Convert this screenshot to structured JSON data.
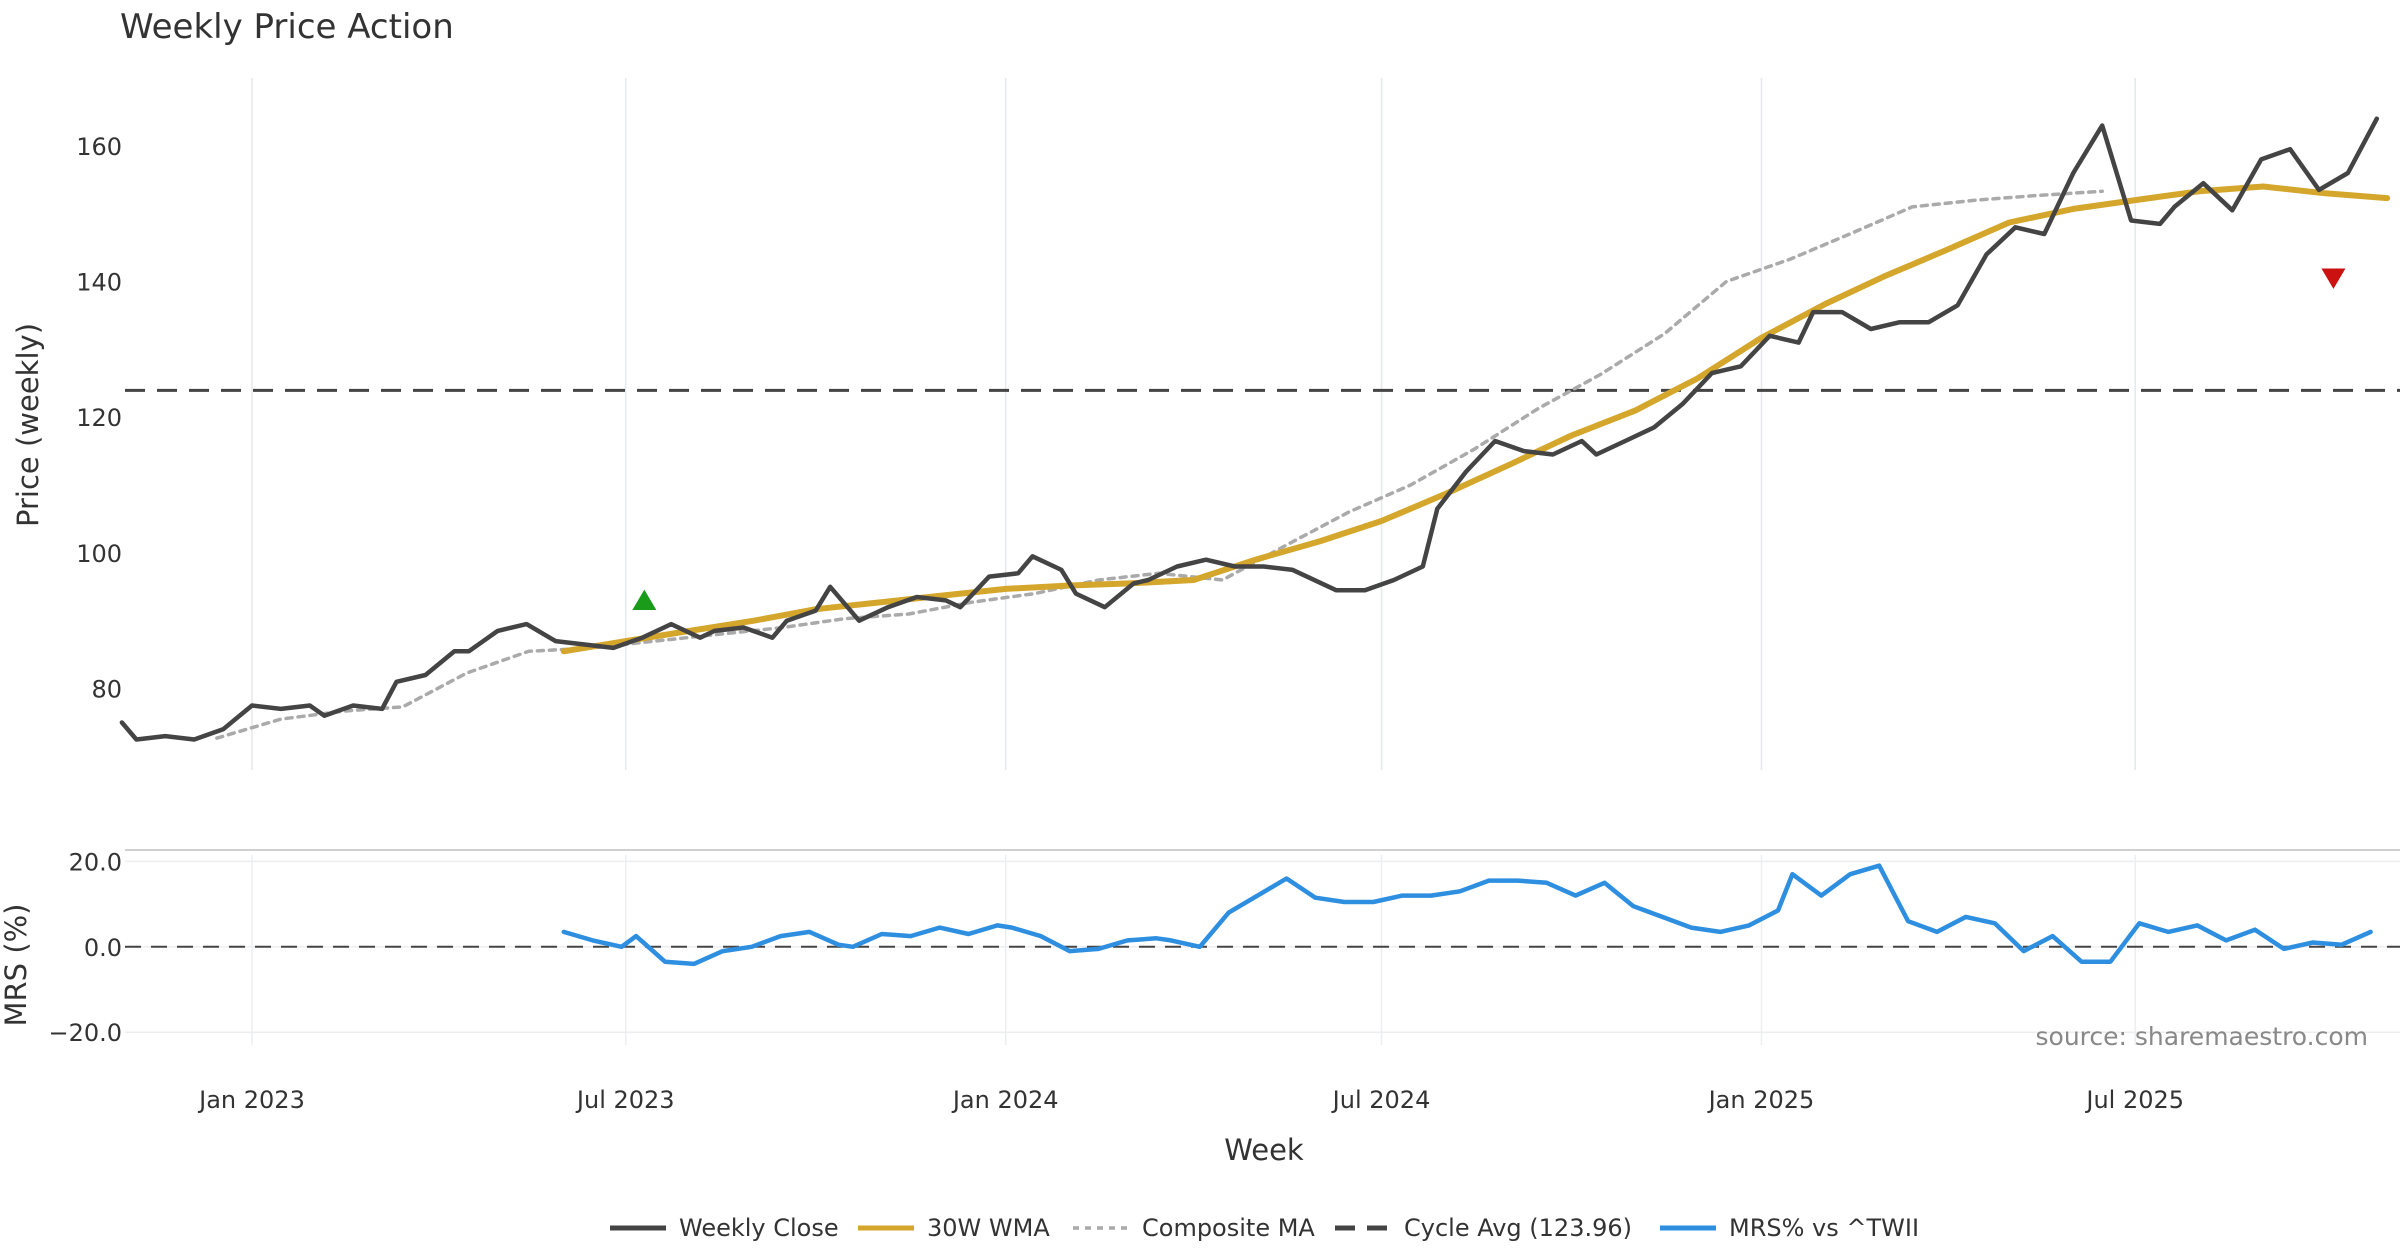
{
  "chart_data": [
    {
      "type": "line",
      "title": "Weekly Price Action",
      "xlabel": "Week",
      "ylabel": "Price (weekly)",
      "ylim": [
        68,
        170
      ],
      "yticks": [
        80,
        100,
        120,
        140,
        160
      ],
      "xticks": [
        {
          "date": "2023-01-01",
          "label": "Jan 2023"
        },
        {
          "date": "2023-07-01",
          "label": "Jul 2023"
        },
        {
          "date": "2024-01-01",
          "label": "Jan 2024"
        },
        {
          "date": "2024-07-01",
          "label": "Jul 2024"
        },
        {
          "date": "2025-01-01",
          "label": "Jan 2025"
        },
        {
          "date": "2025-07-01",
          "label": "Jul 2025"
        }
      ],
      "grid": true,
      "cycle_avg": 123.96,
      "series": [
        {
          "name": "Weekly Close",
          "color": "#444444",
          "style": "solid",
          "points": [
            [
              "2022-10-30",
              75.0
            ],
            [
              "2022-11-06",
              72.5
            ],
            [
              "2022-11-20",
              73.0
            ],
            [
              "2022-12-04",
              72.5
            ],
            [
              "2022-12-18",
              74.0
            ],
            [
              "2023-01-01",
              77.5
            ],
            [
              "2023-01-15",
              77.0
            ],
            [
              "2023-01-29",
              77.5
            ],
            [
              "2023-02-05",
              76.0
            ],
            [
              "2023-02-19",
              77.5
            ],
            [
              "2023-03-05",
              77.0
            ],
            [
              "2023-03-12",
              81.0
            ],
            [
              "2023-03-26",
              82.0
            ],
            [
              "2023-04-09",
              85.5
            ],
            [
              "2023-04-16",
              85.5
            ],
            [
              "2023-04-30",
              88.5
            ],
            [
              "2023-05-14",
              89.5
            ],
            [
              "2023-05-28",
              87.0
            ],
            [
              "2023-06-11",
              86.5
            ],
            [
              "2023-06-25",
              86.0
            ],
            [
              "2023-07-09",
              87.5
            ],
            [
              "2023-07-23",
              89.5
            ],
            [
              "2023-08-06",
              87.5
            ],
            [
              "2023-08-13",
              88.5
            ],
            [
              "2023-08-27",
              89.0
            ],
            [
              "2023-09-10",
              87.5
            ],
            [
              "2023-09-17",
              90.0
            ],
            [
              "2023-10-01",
              91.5
            ],
            [
              "2023-10-08",
              95.0
            ],
            [
              "2023-10-22",
              90.0
            ],
            [
              "2023-11-05",
              92.0
            ],
            [
              "2023-11-19",
              93.5
            ],
            [
              "2023-12-03",
              93.0
            ],
            [
              "2023-12-10",
              92.0
            ],
            [
              "2023-12-24",
              96.5
            ],
            [
              "2024-01-07",
              97.0
            ],
            [
              "2024-01-14",
              99.5
            ],
            [
              "2024-01-28",
              97.5
            ],
            [
              "2024-02-04",
              94.0
            ],
            [
              "2024-02-18",
              92.0
            ],
            [
              "2024-03-03",
              95.5
            ],
            [
              "2024-03-10",
              96.0
            ],
            [
              "2024-03-24",
              98.0
            ],
            [
              "2024-04-07",
              99.0
            ],
            [
              "2024-04-21",
              98.0
            ],
            [
              "2024-05-05",
              98.0
            ],
            [
              "2024-05-19",
              97.5
            ],
            [
              "2024-06-02",
              95.5
            ],
            [
              "2024-06-09",
              94.5
            ],
            [
              "2024-06-23",
              94.5
            ],
            [
              "2024-07-07",
              96.0
            ],
            [
              "2024-07-21",
              98.0
            ],
            [
              "2024-07-28",
              106.5
            ],
            [
              "2024-08-11",
              112.0
            ],
            [
              "2024-08-25",
              116.5
            ],
            [
              "2024-09-08",
              115.0
            ],
            [
              "2024-09-22",
              114.5
            ],
            [
              "2024-10-06",
              116.5
            ],
            [
              "2024-10-13",
              114.5
            ],
            [
              "2024-10-27",
              116.5
            ],
            [
              "2024-11-10",
              118.5
            ],
            [
              "2024-11-24",
              122.0
            ],
            [
              "2024-12-08",
              126.5
            ],
            [
              "2024-12-22",
              127.5
            ],
            [
              "2025-01-05",
              132.0
            ],
            [
              "2025-01-19",
              131.0
            ],
            [
              "2025-01-26",
              135.5
            ],
            [
              "2025-02-09",
              135.5
            ],
            [
              "2025-02-23",
              133.0
            ],
            [
              "2025-03-09",
              134.0
            ],
            [
              "2025-03-23",
              134.0
            ],
            [
              "2025-04-06",
              136.5
            ],
            [
              "2025-04-20",
              144.0
            ],
            [
              "2025-05-04",
              148.0
            ],
            [
              "2025-05-18",
              147.0
            ],
            [
              "2025-06-01",
              156.0
            ],
            [
              "2025-06-15",
              163.0
            ],
            [
              "2025-06-29",
              149.0
            ],
            [
              "2025-07-13",
              148.5
            ],
            [
              "2025-07-20",
              151.0
            ],
            [
              "2025-08-03",
              154.5
            ],
            [
              "2025-08-17",
              150.5
            ],
            [
              "2025-08-31",
              158.0
            ],
            [
              "2025-09-14",
              159.5
            ],
            [
              "2025-09-28",
              153.5
            ],
            [
              "2025-10-12",
              156.0
            ],
            [
              "2025-10-26",
              164.0
            ]
          ]
        },
        {
          "name": "30W WMA",
          "color": "#d4a72c",
          "style": "solid",
          "points": [
            [
              "2023-06-01",
              85.5
            ],
            [
              "2023-07-01",
              87.0
            ],
            [
              "2023-08-01",
              88.5
            ],
            [
              "2023-09-01",
              90.0
            ],
            [
              "2023-10-01",
              91.7
            ],
            [
              "2023-11-01",
              92.7
            ],
            [
              "2023-12-01",
              93.7
            ],
            [
              "2024-01-01",
              94.7
            ],
            [
              "2024-02-01",
              95.2
            ],
            [
              "2024-03-01",
              95.5
            ],
            [
              "2024-04-01",
              96.0
            ],
            [
              "2024-05-01",
              99.0
            ],
            [
              "2024-06-01",
              101.7
            ],
            [
              "2024-07-01",
              104.7
            ],
            [
              "2024-08-01",
              108.7
            ],
            [
              "2024-09-01",
              113.0
            ],
            [
              "2024-10-01",
              117.3
            ],
            [
              "2024-11-01",
              121.0
            ],
            [
              "2024-12-01",
              125.7
            ],
            [
              "2025-01-01",
              131.7
            ],
            [
              "2025-02-01",
              136.7
            ],
            [
              "2025-03-01",
              140.7
            ],
            [
              "2025-04-01",
              144.7
            ],
            [
              "2025-05-01",
              148.7
            ],
            [
              "2025-06-01",
              150.7
            ],
            [
              "2025-07-01",
              152.0
            ],
            [
              "2025-08-01",
              153.3
            ],
            [
              "2025-09-01",
              154.0
            ],
            [
              "2025-10-01",
              153.0
            ],
            [
              "2025-10-31",
              152.3
            ]
          ]
        },
        {
          "name": "Composite MA",
          "color": "#aaaaaa",
          "style": "dotted",
          "points": [
            [
              "2022-12-15",
              72.7
            ],
            [
              "2023-01-15",
              75.5
            ],
            [
              "2023-02-15",
              76.7
            ],
            [
              "2023-03-15",
              77.3
            ],
            [
              "2023-04-15",
              82.3
            ],
            [
              "2023-05-15",
              85.5
            ],
            [
              "2023-06-15",
              86.0
            ],
            [
              "2023-07-15",
              87.0
            ],
            [
              "2023-08-15",
              88.0
            ],
            [
              "2023-09-15",
              89.0
            ],
            [
              "2023-10-15",
              90.3
            ],
            [
              "2023-11-15",
              91.0
            ],
            [
              "2023-12-15",
              92.7
            ],
            [
              "2024-01-15",
              94.0
            ],
            [
              "2024-02-15",
              96.0
            ],
            [
              "2024-03-15",
              97.0
            ],
            [
              "2024-04-15",
              96.0
            ],
            [
              "2024-05-15",
              101.0
            ],
            [
              "2024-06-15",
              106.0
            ],
            [
              "2024-07-15",
              110.0
            ],
            [
              "2024-08-15",
              115.3
            ],
            [
              "2024-09-15",
              121.3
            ],
            [
              "2024-10-15",
              126.3
            ],
            [
              "2024-11-15",
              132.3
            ],
            [
              "2024-12-15",
              140.0
            ],
            [
              "2025-01-15",
              143.3
            ],
            [
              "2025-02-15",
              147.3
            ],
            [
              "2025-03-15",
              151.0
            ],
            [
              "2025-04-15",
              152.0
            ],
            [
              "2025-05-15",
              152.7
            ],
            [
              "2025-06-15",
              153.3
            ]
          ]
        },
        {
          "name": "Cycle Avg (123.96)",
          "color": "#444444",
          "style": "dashed",
          "constant": 123.96
        }
      ],
      "annotations": [
        {
          "type": "triangle-up",
          "color": "#1a9b1a",
          "x": "2023-07-10",
          "y": 93.0
        },
        {
          "type": "triangle-down",
          "color": "#cc1111",
          "x": "2025-10-05",
          "y": 140.5
        }
      ]
    },
    {
      "type": "line",
      "ylabel": "MRS (%)",
      "ylim": [
        -23,
        21.5
      ],
      "yticks": [
        20.0,
        0.0,
        -20.0
      ],
      "zero_line": 0.0,
      "grid": true,
      "series": [
        {
          "name": "MRS% vs ^TWII",
          "color": "#2e8fe0",
          "style": "solid",
          "points": [
            [
              "2023-06-01",
              3.5
            ],
            [
              "2023-06-15",
              1.5
            ],
            [
              "2023-06-29",
              0.0
            ],
            [
              "2023-07-06",
              2.5
            ],
            [
              "2023-07-20",
              -3.5
            ],
            [
              "2023-08-03",
              -4.0
            ],
            [
              "2023-08-17",
              -1.0
            ],
            [
              "2023-08-31",
              0.0
            ],
            [
              "2023-09-14",
              2.5
            ],
            [
              "2023-09-28",
              3.5
            ],
            [
              "2023-10-12",
              0.5
            ],
            [
              "2023-10-19",
              0.0
            ],
            [
              "2023-11-02",
              3.0
            ],
            [
              "2023-11-16",
              2.5
            ],
            [
              "2023-11-30",
              4.5
            ],
            [
              "2023-12-14",
              3.0
            ],
            [
              "2023-12-28",
              5.0
            ],
            [
              "2024-01-04",
              4.5
            ],
            [
              "2024-01-18",
              2.5
            ],
            [
              "2024-02-01",
              -1.0
            ],
            [
              "2024-02-15",
              -0.5
            ],
            [
              "2024-02-29",
              1.5
            ],
            [
              "2024-03-14",
              2.0
            ],
            [
              "2024-03-21",
              1.5
            ],
            [
              "2024-04-04",
              0.0
            ],
            [
              "2024-04-18",
              8.0
            ],
            [
              "2024-05-02",
              12.0
            ],
            [
              "2024-05-16",
              16.0
            ],
            [
              "2024-05-30",
              11.5
            ],
            [
              "2024-06-13",
              10.5
            ],
            [
              "2024-06-27",
              10.5
            ],
            [
              "2024-07-11",
              12.0
            ],
            [
              "2024-07-25",
              12.0
            ],
            [
              "2024-08-08",
              13.0
            ],
            [
              "2024-08-22",
              15.5
            ],
            [
              "2024-09-05",
              15.5
            ],
            [
              "2024-09-19",
              15.0
            ],
            [
              "2024-10-03",
              12.0
            ],
            [
              "2024-10-17",
              15.0
            ],
            [
              "2024-10-31",
              9.5
            ],
            [
              "2024-11-14",
              7.0
            ],
            [
              "2024-11-28",
              4.5
            ],
            [
              "2024-12-12",
              3.5
            ],
            [
              "2024-12-26",
              5.0
            ],
            [
              "2025-01-09",
              8.5
            ],
            [
              "2025-01-16",
              17.0
            ],
            [
              "2025-01-30",
              12.0
            ],
            [
              "2025-02-13",
              17.0
            ],
            [
              "2025-02-27",
              19.0
            ],
            [
              "2025-03-13",
              6.0
            ],
            [
              "2025-03-27",
              3.5
            ],
            [
              "2025-04-10",
              7.0
            ],
            [
              "2025-04-24",
              5.5
            ],
            [
              "2025-05-08",
              -1.0
            ],
            [
              "2025-05-22",
              2.5
            ],
            [
              "2025-06-05",
              -3.5
            ],
            [
              "2025-06-19",
              -3.5
            ],
            [
              "2025-07-03",
              5.5
            ],
            [
              "2025-07-17",
              3.5
            ],
            [
              "2025-07-31",
              5.0
            ],
            [
              "2025-08-14",
              1.5
            ],
            [
              "2025-08-28",
              4.0
            ],
            [
              "2025-09-11",
              -0.5
            ],
            [
              "2025-09-25",
              1.0
            ],
            [
              "2025-10-09",
              0.5
            ],
            [
              "2025-10-23",
              3.5
            ]
          ]
        }
      ]
    }
  ],
  "source": "source: sharemaestro.com",
  "legend": [
    {
      "label": "Weekly Close",
      "style": "solid",
      "color": "#444444"
    },
    {
      "label": "30W WMA",
      "style": "solid",
      "color": "#d4a72c"
    },
    {
      "label": "Composite MA",
      "style": "dotted",
      "color": "#aaaaaa"
    },
    {
      "label": "Cycle Avg (123.96)",
      "style": "dashed",
      "color": "#444444"
    },
    {
      "label": "MRS% vs ^TWII",
      "style": "solid",
      "color": "#2e8fe0"
    }
  ]
}
